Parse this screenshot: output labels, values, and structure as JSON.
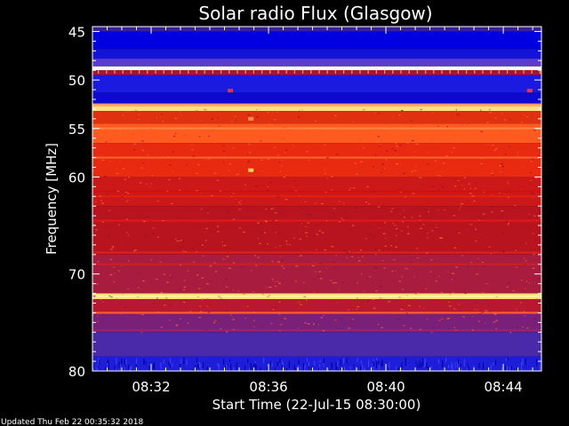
{
  "chart_data": {
    "type": "heatmap",
    "title": "Solar radio Flux (Glasgow)",
    "xlabel": "Start Time (22-Jul-15 08:30:00)",
    "ylabel": "Frequency [MHz]",
    "x_unit": "minutes after 08:30",
    "xlim": [
      0,
      15.3
    ],
    "ylim": [
      44.5,
      80
    ],
    "y_ticks": [
      {
        "value": 45,
        "label": "45"
      },
      {
        "value": 50,
        "label": "50"
      },
      {
        "value": 55,
        "label": "55"
      },
      {
        "value": 60,
        "label": "60"
      },
      {
        "value": 70,
        "label": "70"
      },
      {
        "value": 80,
        "label": "80"
      }
    ],
    "x_ticks": [
      {
        "value": 2,
        "label": "08:32"
      },
      {
        "value": 6,
        "label": "08:36"
      },
      {
        "value": 10,
        "label": "08:40"
      },
      {
        "value": 14,
        "label": "08:44"
      }
    ],
    "bands": [
      {
        "from": 44.5,
        "to": 45.0,
        "color": "#3a1f9a"
      },
      {
        "from": 45.0,
        "to": 46.8,
        "color": "#0000e0"
      },
      {
        "from": 46.8,
        "to": 47.8,
        "color": "#1414d8"
      },
      {
        "from": 47.8,
        "to": 48.6,
        "color": "#5a3ad0"
      },
      {
        "from": 48.6,
        "to": 49.0,
        "color": "#ffffcc"
      },
      {
        "from": 49.0,
        "to": 49.5,
        "color": "#b01040"
      },
      {
        "from": 49.5,
        "to": 51.3,
        "color": "#1a1ae0"
      },
      {
        "from": 51.3,
        "to": 52.4,
        "color": "#0a0ad0"
      },
      {
        "from": 52.4,
        "to": 52.7,
        "color": "#ff6020"
      },
      {
        "from": 52.7,
        "to": 53.2,
        "color": "#ffe080"
      },
      {
        "from": 53.2,
        "to": 54.5,
        "color": "#e03010"
      },
      {
        "from": 54.5,
        "to": 56.5,
        "color": "#ff5a20"
      },
      {
        "from": 56.5,
        "to": 60.0,
        "color": "#e82a10"
      },
      {
        "from": 60.0,
        "to": 63.0,
        "color": "#cc1818"
      },
      {
        "from": 63.0,
        "to": 68.0,
        "color": "#b81420"
      },
      {
        "from": 68.0,
        "to": 72.0,
        "color": "#a81c40"
      },
      {
        "from": 72.0,
        "to": 72.6,
        "color": "#ffe070"
      },
      {
        "from": 72.6,
        "to": 74.0,
        "color": "#b81830"
      },
      {
        "from": 74.0,
        "to": 76.0,
        "color": "#7a2078"
      },
      {
        "from": 76.0,
        "to": 78.5,
        "color": "#4a2aa8"
      },
      {
        "from": 78.5,
        "to": 80.0,
        "color": "#1e1ed8"
      }
    ],
    "lines": [
      {
        "freq": 48.8,
        "color": "#ffffff"
      },
      {
        "freq": 52.6,
        "color": "#ffb070"
      },
      {
        "freq": 55.0,
        "color": "#ff8040"
      },
      {
        "freq": 58.0,
        "color": "#ff6030"
      },
      {
        "freq": 61.5,
        "color": "#d01010"
      },
      {
        "freq": 62.0,
        "color": "#e02010"
      },
      {
        "freq": 64.5,
        "color": "#e01818"
      },
      {
        "freq": 67.8,
        "color": "#d82020"
      },
      {
        "freq": 69.0,
        "color": "#c82028"
      },
      {
        "freq": 72.3,
        "color": "#fff0a0"
      },
      {
        "freq": 74.0,
        "color": "#ff6030"
      },
      {
        "freq": 75.8,
        "color": "#9a2070"
      }
    ],
    "features": [
      {
        "x": 5.4,
        "freq": 59.3,
        "color": "#ffd060"
      },
      {
        "x": 5.4,
        "freq": 54.0,
        "color": "#ff9050"
      },
      {
        "x": 4.7,
        "freq": 51.1,
        "color": "#ff3020"
      },
      {
        "x": 14.9,
        "freq": 51.1,
        "color": "#ff3020"
      }
    ]
  },
  "footer": {
    "updated": "Updated Thu Feb 22 00:35:32 2018"
  },
  "colors": {
    "background": "#000000",
    "text": "#ffffff"
  }
}
